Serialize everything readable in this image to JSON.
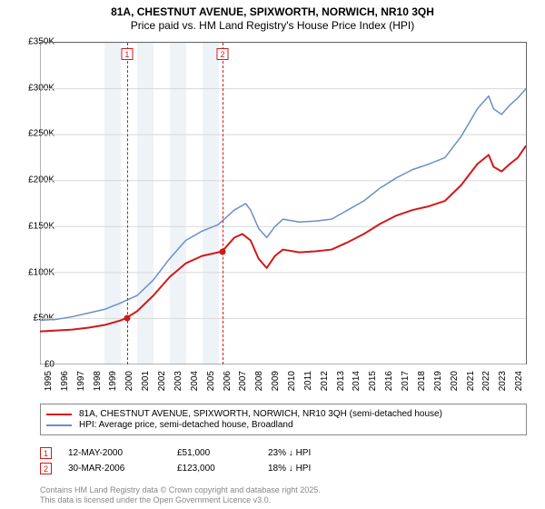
{
  "title": "81A, CHESTNUT AVENUE, SPIXWORTH, NORWICH, NR10 3QH",
  "subtitle": "Price paid vs. HM Land Registry's House Price Index (HPI)",
  "chart": {
    "type": "line",
    "background_color": "#ffffff",
    "grid_color": "#d8d8d8",
    "border_color": "#666666",
    "ylim": [
      0,
      350000
    ],
    "ytick_step": 50000,
    "yticks": [
      "£0",
      "£50K",
      "£100K",
      "£150K",
      "£200K",
      "£250K",
      "£300K",
      "£350K"
    ],
    "xlim": [
      1995,
      2025
    ],
    "xticks": [
      1995,
      1996,
      1997,
      1998,
      1999,
      2000,
      2001,
      2002,
      2003,
      2004,
      2005,
      2006,
      2007,
      2008,
      2009,
      2010,
      2011,
      2012,
      2013,
      2014,
      2015,
      2016,
      2017,
      2018,
      2019,
      2020,
      2021,
      2022,
      2023,
      2024
    ],
    "shaded_bands": [
      {
        "from": 1999,
        "to": 2000,
        "color": "#eef3f7"
      },
      {
        "from": 2001,
        "to": 2002,
        "color": "#eef3f7"
      },
      {
        "from": 2003,
        "to": 2004,
        "color": "#eef3f7"
      },
      {
        "from": 2005,
        "to": 2006,
        "color": "#eef3f7"
      }
    ],
    "vertical_markers": [
      {
        "id": "1",
        "x": 2000.37,
        "color": "#d11919"
      },
      {
        "id": "2",
        "x": 2006.25,
        "color": "#d11919"
      }
    ],
    "series": [
      {
        "name": "price_paid",
        "label": "81A, CHESTNUT AVENUE, SPIXWORTH, NORWICH, NR10 3QH (semi-detached house)",
        "color": "#d11919",
        "line_width": 2,
        "points": [
          [
            1995,
            36000
          ],
          [
            1996,
            37000
          ],
          [
            1997,
            38000
          ],
          [
            1998,
            40000
          ],
          [
            1999,
            43000
          ],
          [
            2000,
            48000
          ],
          [
            2000.37,
            51000
          ],
          [
            2001,
            58000
          ],
          [
            2002,
            75000
          ],
          [
            2003,
            95000
          ],
          [
            2004,
            110000
          ],
          [
            2005,
            118000
          ],
          [
            2006,
            122000
          ],
          [
            2006.25,
            123000
          ],
          [
            2007,
            138000
          ],
          [
            2007.5,
            142000
          ],
          [
            2008,
            135000
          ],
          [
            2008.5,
            115000
          ],
          [
            2009,
            105000
          ],
          [
            2009.5,
            118000
          ],
          [
            2010,
            125000
          ],
          [
            2011,
            122000
          ],
          [
            2012,
            123000
          ],
          [
            2013,
            125000
          ],
          [
            2014,
            133000
          ],
          [
            2015,
            142000
          ],
          [
            2016,
            153000
          ],
          [
            2017,
            162000
          ],
          [
            2018,
            168000
          ],
          [
            2019,
            172000
          ],
          [
            2020,
            178000
          ],
          [
            2021,
            195000
          ],
          [
            2022,
            218000
          ],
          [
            2022.7,
            228000
          ],
          [
            2023,
            215000
          ],
          [
            2023.5,
            210000
          ],
          [
            2024,
            218000
          ],
          [
            2024.5,
            225000
          ],
          [
            2025,
            238000
          ]
        ],
        "markers": [
          {
            "x": 2000.37,
            "y": 51000
          },
          {
            "x": 2006.25,
            "y": 123000
          }
        ]
      },
      {
        "name": "hpi",
        "label": "HPI: Average price, semi-detached house, Broadland",
        "color": "#6a8fc7",
        "line_width": 1.5,
        "points": [
          [
            1995,
            48000
          ],
          [
            1996,
            49000
          ],
          [
            1997,
            52000
          ],
          [
            1998,
            56000
          ],
          [
            1999,
            60000
          ],
          [
            2000,
            67000
          ],
          [
            2001,
            75000
          ],
          [
            2002,
            92000
          ],
          [
            2003,
            115000
          ],
          [
            2004,
            135000
          ],
          [
            2005,
            145000
          ],
          [
            2006,
            152000
          ],
          [
            2007,
            168000
          ],
          [
            2007.7,
            175000
          ],
          [
            2008,
            168000
          ],
          [
            2008.5,
            148000
          ],
          [
            2009,
            138000
          ],
          [
            2009.5,
            150000
          ],
          [
            2010,
            158000
          ],
          [
            2011,
            155000
          ],
          [
            2012,
            156000
          ],
          [
            2013,
            158000
          ],
          [
            2014,
            168000
          ],
          [
            2015,
            178000
          ],
          [
            2016,
            192000
          ],
          [
            2017,
            203000
          ],
          [
            2018,
            212000
          ],
          [
            2019,
            218000
          ],
          [
            2020,
            225000
          ],
          [
            2021,
            248000
          ],
          [
            2022,
            278000
          ],
          [
            2022.7,
            292000
          ],
          [
            2023,
            278000
          ],
          [
            2023.5,
            272000
          ],
          [
            2024,
            282000
          ],
          [
            2024.5,
            290000
          ],
          [
            2025,
            300000
          ]
        ]
      }
    ]
  },
  "legend": {
    "row1": "81A, CHESTNUT AVENUE, SPIXWORTH, NORWICH, NR10 3QH (semi-detached house)",
    "row2": "HPI: Average price, semi-detached house, Broadland"
  },
  "transactions": [
    {
      "id": "1",
      "date": "12-MAY-2000",
      "price": "£51,000",
      "delta": "23% ↓ HPI",
      "color": "#d11919"
    },
    {
      "id": "2",
      "date": "30-MAR-2006",
      "price": "£123,000",
      "delta": "18% ↓ HPI",
      "color": "#d11919"
    }
  ],
  "copyright": {
    "line1": "Contains HM Land Registry data © Crown copyright and database right 2025.",
    "line2": "This data is licensed under the Open Government Licence v3.0."
  }
}
